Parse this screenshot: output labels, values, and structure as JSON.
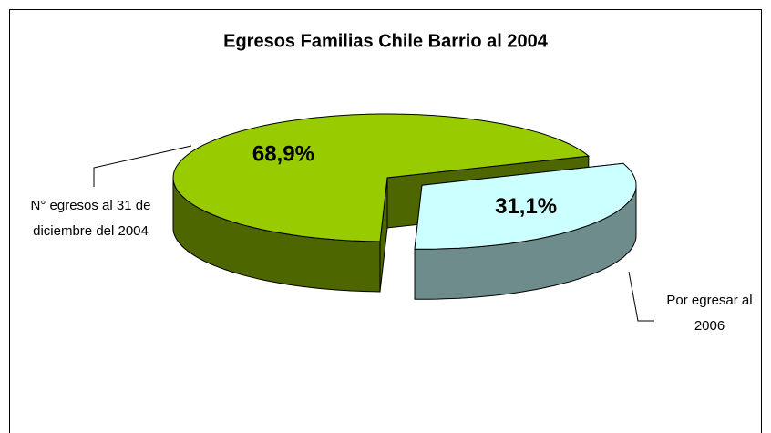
{
  "chart_data": {
    "type": "pie",
    "title": "Egresos Familias Chile Barrio al 2004",
    "categories": [
      "N° egresos al 31 de diciembre del 2004",
      "Por egresar al 2006"
    ],
    "values": [
      68.9,
      31.1
    ],
    "value_labels": [
      "68,9%",
      "31,1%"
    ],
    "colors": [
      "#99cc00",
      "#ccffff"
    ]
  }
}
